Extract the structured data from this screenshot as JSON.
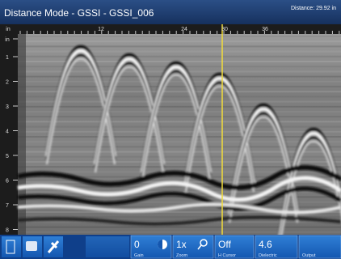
{
  "header": {
    "title": "Distance Mode - GSSI - GSSI_006",
    "distance": "Distance: 29.92 in"
  },
  "ruler": {
    "horizontal": [
      "in",
      "12",
      "24",
      "30",
      "36"
    ],
    "vertical": [
      "in",
      "1",
      "2",
      "3",
      "4",
      "5",
      "6",
      "7",
      "8"
    ]
  },
  "toolbar": {
    "buttons": [
      {
        "value": "0",
        "label": "Gain"
      },
      {
        "value": "1x",
        "label": "Zoom"
      },
      {
        "value": "Off",
        "label": "H Cursor"
      },
      {
        "value": "4.6",
        "label": "Dielectric"
      },
      {
        "label": "Output"
      }
    ]
  }
}
